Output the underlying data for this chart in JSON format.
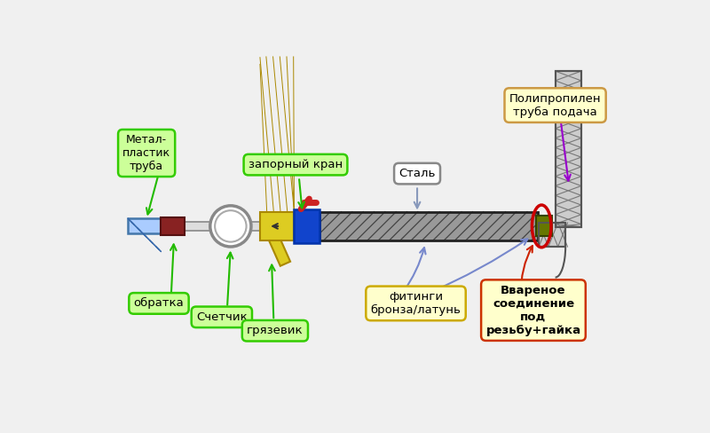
{
  "bg_color": "#f0f0f0",
  "fig_width": 8.0,
  "fig_height": 4.88,
  "labels": {
    "metal_plastik": "Метал-\nпластик\nтруба",
    "zaporniy_kran": "запорный кран",
    "stal": "Сталь",
    "obratka": "обратка",
    "schetcik": "Счетчик",
    "gryazevik": "грязевик",
    "fitingi": "фитинги\nбронза/латунь",
    "vvarennoe": "Ввареное\nсоединение\nпод\nрезьбу+гайка",
    "polipropilen": "Полипропилен\nтруба подача"
  },
  "green_bg": "#ccff99",
  "green_border": "#33cc00",
  "yellow_bg": "#ffffcc",
  "yellow_border": "#ccaa00",
  "red_border": "#cc3300",
  "arrow_green": "#22bb00",
  "arrow_purple": "#9900cc",
  "arrow_blue": "#7788cc",
  "arrow_red": "#cc2200",
  "arrow_gray": "#8899bb"
}
